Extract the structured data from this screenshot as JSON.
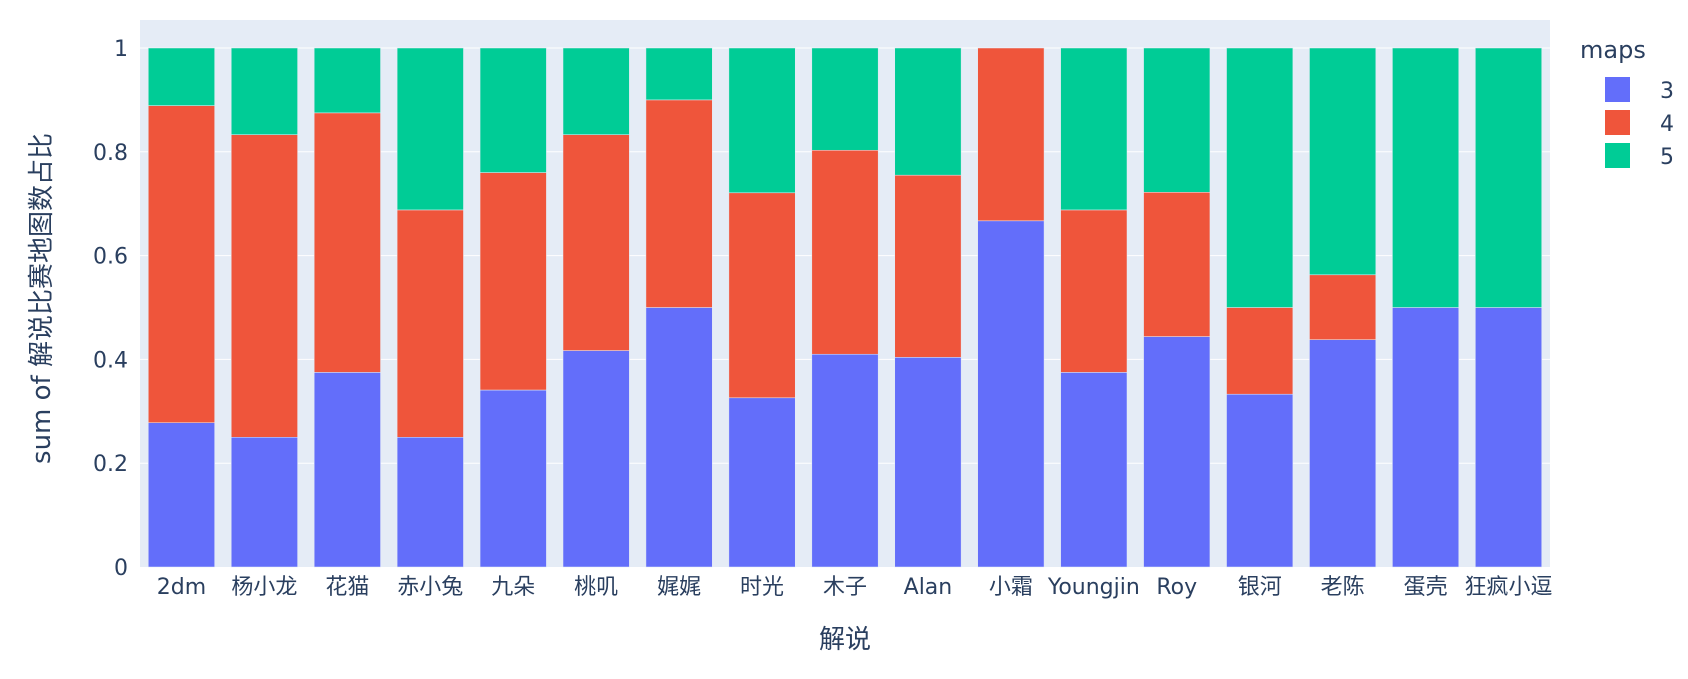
{
  "chart_data": {
    "type": "bar",
    "stacked": true,
    "xlabel": "解说",
    "ylabel": "sum of 解说比赛地图数占比",
    "ylim": [
      0,
      1
    ],
    "yticks": [
      0,
      0.2,
      0.4,
      0.6,
      0.8,
      1
    ],
    "ytick_labels": [
      "0",
      "0.2",
      "0.4",
      "0.6",
      "0.8",
      "1"
    ],
    "grid": true,
    "legend": {
      "title": "maps",
      "placement": "right"
    },
    "categories": [
      "2dm",
      "杨小龙",
      "花猫",
      "赤小兔",
      "九朵",
      "桃叽",
      "娓娓",
      "时光",
      "木子",
      "Alan",
      "小霜",
      "Youngjin",
      "Roy",
      "银河",
      "老陈",
      "蛋壳",
      "狂疯小逗"
    ],
    "series": [
      {
        "name": "3",
        "color": "#636efa",
        "values": [
          0.278,
          0.25,
          0.375,
          0.25,
          0.341,
          0.417,
          0.5,
          0.326,
          0.41,
          0.404,
          0.667,
          0.375,
          0.444,
          0.333,
          0.438,
          0.5,
          0.5
        ]
      },
      {
        "name": "4",
        "color": "#ef553b",
        "values": [
          0.611,
          0.583,
          0.5,
          0.438,
          0.419,
          0.416,
          0.4,
          0.395,
          0.393,
          0.351,
          0.333,
          0.313,
          0.278,
          0.167,
          0.125,
          0,
          0
        ]
      },
      {
        "name": "5",
        "color": "#00cc96",
        "values": [
          0.111,
          0.167,
          0.125,
          0.312,
          0.24,
          0.167,
          0.1,
          0.279,
          0.197,
          0.245,
          0,
          0.312,
          0.278,
          0.5,
          0.437,
          0.5,
          0.5
        ]
      }
    ]
  },
  "colors": {
    "plot_background": "#e5ecf6",
    "grid": "#ffffff",
    "text": "#2a3f5f"
  }
}
